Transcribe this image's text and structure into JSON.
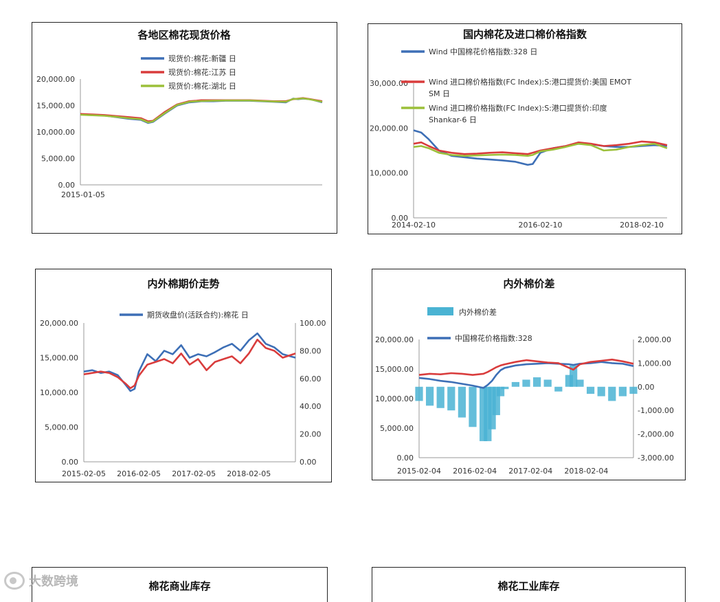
{
  "chart_data": [
    {
      "id": "c1",
      "type": "line",
      "title": "各地区棉花现货价格",
      "x_start_label": "2015-01-05",
      "x": [
        0,
        5,
        10,
        15,
        20,
        25,
        28,
        30,
        35,
        40,
        45,
        48,
        50,
        55,
        60,
        65,
        70,
        75,
        80,
        85,
        88,
        90,
        92,
        95,
        100
      ],
      "ylim": [
        0,
        20000
      ],
      "yticks": [
        "20,000.00",
        "15,000.00",
        "10,000.00",
        "5,000.00",
        "0.00"
      ],
      "yticks_values": [
        20000,
        15000,
        10000,
        5000,
        0
      ],
      "legend_placement": "top",
      "series": [
        {
          "name": "现货价:棉花:新疆 日",
          "color": "#3d6fb6",
          "values": [
            13300,
            13200,
            13100,
            12800,
            12500,
            12300,
            11700,
            11900,
            13500,
            15000,
            15600,
            15700,
            15800,
            15800,
            15900,
            15900,
            15900,
            15800,
            15700,
            15600,
            16300,
            16200,
            16300,
            16200,
            15600
          ]
        },
        {
          "name": "现货价:棉花:江苏 日",
          "color": "#d93c3c",
          "values": [
            13400,
            13300,
            13200,
            13000,
            12800,
            12600,
            12000,
            12100,
            13800,
            15200,
            15800,
            15900,
            16000,
            16000,
            16000,
            16000,
            16000,
            15900,
            15800,
            15800,
            16200,
            16300,
            16400,
            16200,
            15800
          ]
        },
        {
          "name": "现货价:棉花:湖北 日",
          "color": "#9cc03a",
          "values": [
            13250,
            13150,
            13050,
            12850,
            12600,
            12400,
            11800,
            12000,
            13600,
            15100,
            15700,
            15800,
            15850,
            15900,
            15950,
            15950,
            15950,
            15850,
            15750,
            15700,
            16250,
            16250,
            16350,
            16150,
            15700
          ]
        }
      ]
    },
    {
      "id": "c2",
      "type": "line",
      "title": "国内棉花及进口棉价格指数",
      "x_labels": [
        "2014-02-10",
        "2016-02-10",
        "2018-02-10"
      ],
      "x_label_positions": [
        0,
        50,
        90
      ],
      "x": [
        0,
        3,
        6,
        10,
        15,
        20,
        25,
        30,
        35,
        40,
        45,
        47,
        50,
        55,
        60,
        65,
        70,
        75,
        80,
        85,
        90,
        95,
        100
      ],
      "ylim": [
        0,
        30000
      ],
      "yticks": [
        "30,000.00",
        "20,000.00",
        "10,000.00",
        "0.00"
      ],
      "yticks_values": [
        30000,
        20000,
        10000,
        0
      ],
      "legend_placement": "top",
      "series": [
        {
          "name": "Wind 中国棉花价格指数:328 日",
          "color": "#3d6fb6",
          "values": [
            19500,
            19000,
            17500,
            15000,
            13800,
            13500,
            13200,
            13000,
            12800,
            12500,
            11800,
            12000,
            14500,
            15500,
            16000,
            16500,
            16400,
            16000,
            15800,
            15800,
            16000,
            16200,
            16000
          ]
        },
        {
          "name": "Wind 进口棉价格指数(FC Index):S:港口提货价:美国 EMOT SM 日",
          "color": "#d93c3c",
          "values": [
            16500,
            16800,
            16000,
            15000,
            14500,
            14200,
            14300,
            14500,
            14600,
            14400,
            14200,
            14500,
            15000,
            15500,
            16000,
            16800,
            16500,
            16000,
            16200,
            16500,
            17000,
            16800,
            16200
          ]
        },
        {
          "name": "Wind 进口棉价格指数(FC Index):S:港口提货价:印度 Shankar-6 日",
          "color": "#9cc03a",
          "values": [
            15800,
            16000,
            15500,
            14500,
            14000,
            13800,
            13900,
            14000,
            14100,
            14000,
            13800,
            14000,
            14800,
            15200,
            15800,
            16500,
            16200,
            15000,
            15200,
            15800,
            16200,
            16500,
            15500
          ]
        }
      ]
    },
    {
      "id": "c3",
      "type": "line",
      "title": "内外棉期价走势",
      "x_labels": [
        "2015-02-05",
        "2016-02-05",
        "2017-02-05",
        "2018-02-05"
      ],
      "x_label_positions": [
        0,
        26,
        52,
        78
      ],
      "x": [
        0,
        4,
        8,
        12,
        16,
        20,
        22,
        24,
        26,
        30,
        34,
        38,
        42,
        46,
        50,
        54,
        58,
        62,
        66,
        70,
        74,
        78,
        82,
        86,
        90,
        94,
        100
      ],
      "ylim": [
        0,
        20000
      ],
      "yticks": [
        "20,000.00",
        "15,000.00",
        "10,000.00",
        "5,000.00",
        "0.00"
      ],
      "yticks_values": [
        20000,
        15000,
        10000,
        5000,
        0
      ],
      "y2lim": [
        0,
        100
      ],
      "y2ticks": [
        "100.00",
        "80.00",
        "60.00",
        "40.00",
        "20.00",
        "0.00"
      ],
      "y2ticks_values": [
        100,
        80,
        60,
        40,
        20,
        0
      ],
      "legend_placement": "top",
      "series": [
        {
          "name": "期货收盘价(活跃合约):棉花 日",
          "color": "#3d6fb6",
          "axis": "left",
          "values": [
            13000,
            13200,
            12800,
            13000,
            12500,
            11000,
            10200,
            10500,
            13000,
            15500,
            14500,
            16000,
            15500,
            16800,
            15000,
            15500,
            15200,
            15800,
            16500,
            17000,
            16000,
            17500,
            18500,
            17000,
            16500,
            15500,
            15000
          ]
        },
        {
          "name": "",
          "color": "#d93c3c",
          "axis": "right",
          "values": [
            63,
            64,
            65,
            64,
            61,
            56,
            53,
            55,
            62,
            70,
            72,
            74,
            71,
            78,
            70,
            74,
            66,
            72,
            74,
            76,
            71,
            78,
            88,
            82,
            80,
            75,
            78
          ]
        }
      ]
    },
    {
      "id": "c4",
      "type": "line",
      "title": "内外棉价差",
      "x_labels": [
        "2015-02-04",
        "2016-02-04",
        "2017-02-04",
        "2018-02-04"
      ],
      "x_label_positions": [
        0,
        26,
        52,
        78
      ],
      "x": [
        0,
        5,
        10,
        15,
        20,
        25,
        30,
        32,
        34,
        36,
        38,
        40,
        45,
        50,
        55,
        60,
        65,
        70,
        72,
        75,
        80,
        85,
        90,
        95,
        100
      ],
      "ylim": [
        0,
        20000
      ],
      "yticks": [
        "20,000.00",
        "15,000.00",
        "10,000.00",
        "5,000.00",
        "0.00"
      ],
      "yticks_values": [
        20000,
        15000,
        10000,
        5000,
        0
      ],
      "y2lim": [
        -3000,
        2000
      ],
      "y2ticks": [
        "2,000.00",
        "1,000.00",
        "0.00",
        "-1,000.00",
        "-2,000.00",
        "-3,000.00"
      ],
      "y2ticks_values": [
        2000,
        1000,
        0,
        -1000,
        -2000,
        -3000
      ],
      "legend_placement": "top-left",
      "series": [
        {
          "name": "内外棉价差",
          "color": "#4ab3d3",
          "type": "bar",
          "axis": "right",
          "values": [
            -600,
            -800,
            -900,
            -1000,
            -1300,
            -1700,
            -2300,
            -2300,
            -1800,
            -1200,
            -400,
            -100,
            200,
            300,
            400,
            300,
            -200,
            500,
            900,
            300,
            -300,
            -400,
            -600,
            -400,
            -300
          ]
        },
        {
          "name": "中国棉花价格指数:328",
          "color": "#3d6fb6",
          "type": "line",
          "axis": "left",
          "values": [
            13500,
            13300,
            13000,
            12800,
            12500,
            12200,
            11800,
            12300,
            13000,
            14000,
            14800,
            15200,
            15600,
            15800,
            15900,
            16000,
            15900,
            15800,
            15700,
            15900,
            16000,
            16200,
            16000,
            15900,
            15500
          ]
        },
        {
          "name": "",
          "color": "#d93c3c",
          "type": "line",
          "axis": "left",
          "values": [
            14000,
            14200,
            14100,
            14300,
            14200,
            14000,
            14200,
            14500,
            14900,
            15300,
            15600,
            15800,
            16200,
            16500,
            16300,
            16100,
            16000,
            15200,
            14900,
            15800,
            16200,
            16400,
            16600,
            16300,
            15900
          ]
        }
      ]
    }
  ],
  "bottom_panels": [
    {
      "title": "棉花商业库存"
    },
    {
      "title": "棉花工业库存"
    }
  ],
  "watermark": {
    "text": "大数跨境"
  }
}
